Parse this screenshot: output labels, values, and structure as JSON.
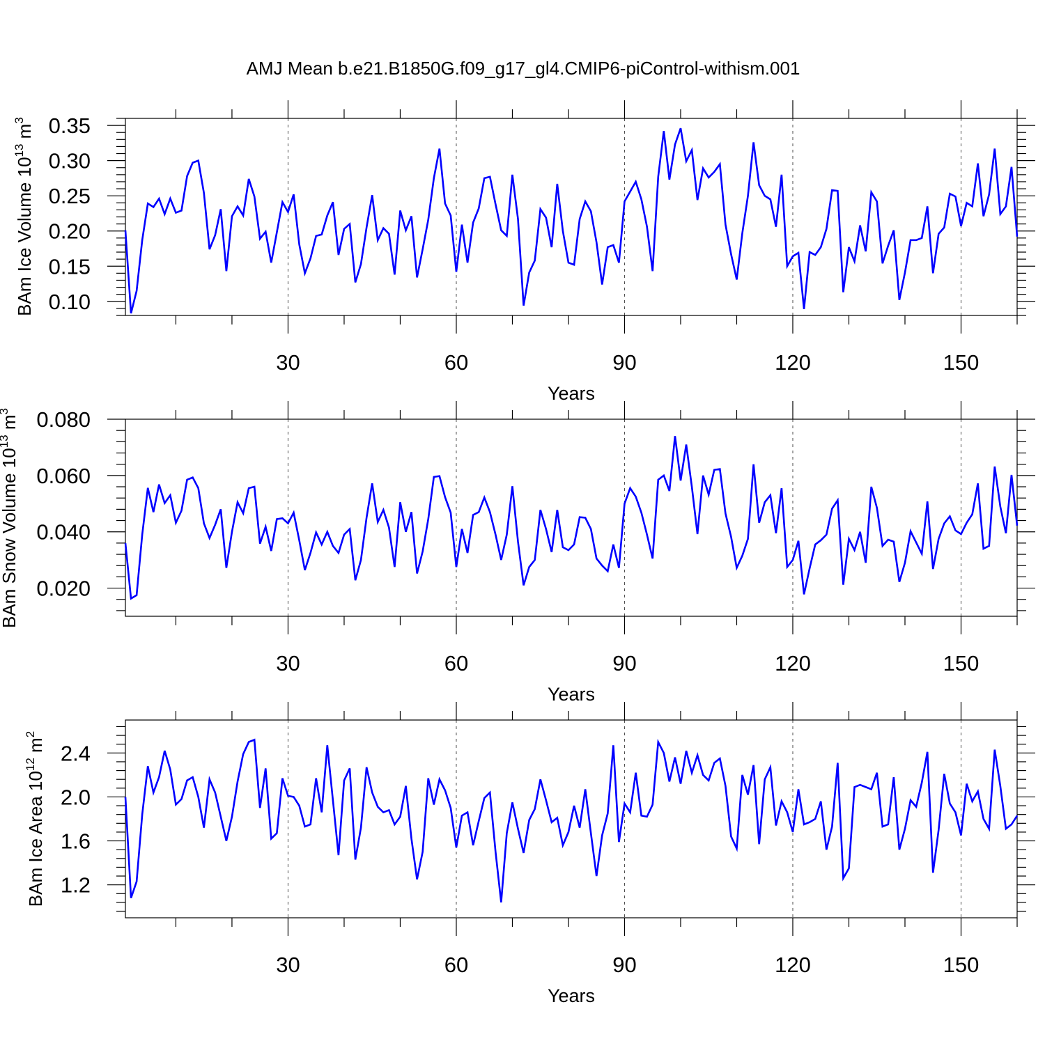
{
  "chart_data": [
    {
      "type": "line",
      "title": "AMJ Mean b.e21.B1850G.f09_g17_gl4.CMIP6-piControl-withism.001",
      "xlabel": "Years",
      "ylabel_main": "BAm Ice Volume 10",
      "ylabel_exp": "13",
      "ylabel_unit": "m",
      "ylabel_unit_exp": "3",
      "xlim": [
        1,
        160
      ],
      "ylim": [
        0.08,
        0.36
      ],
      "x_ticks": [
        30,
        60,
        90,
        120,
        150
      ],
      "x_tick_labels": [
        "30",
        "60",
        "90",
        "120",
        "150"
      ],
      "y_ticks": [
        0.1,
        0.15,
        0.2,
        0.25,
        0.3,
        0.35
      ],
      "y_tick_labels": [
        "0.10",
        "0.15",
        "0.20",
        "0.25",
        "0.30",
        "0.35"
      ],
      "series": [
        {
          "name": "BAm Ice Volume",
          "color": "#0000ff",
          "x_start": 1,
          "values": [
            0.201,
            0.083,
            0.115,
            0.187,
            0.239,
            0.234,
            0.246,
            0.224,
            0.246,
            0.226,
            0.229,
            0.278,
            0.297,
            0.3,
            0.254,
            0.174,
            0.194,
            0.231,
            0.143,
            0.221,
            0.235,
            0.222,
            0.274,
            0.249,
            0.189,
            0.199,
            0.155,
            0.198,
            0.241,
            0.227,
            0.252,
            0.181,
            0.14,
            0.161,
            0.193,
            0.195,
            0.222,
            0.241,
            0.166,
            0.203,
            0.21,
            0.127,
            0.153,
            0.205,
            0.251,
            0.187,
            0.204,
            0.196,
            0.138,
            0.229,
            0.201,
            0.221,
            0.134,
            0.174,
            0.216,
            0.275,
            0.317,
            0.239,
            0.222,
            0.142,
            0.209,
            0.155,
            0.212,
            0.232,
            0.275,
            0.277,
            0.238,
            0.201,
            0.193,
            0.28,
            0.217,
            0.094,
            0.141,
            0.158,
            0.231,
            0.219,
            0.177,
            0.267,
            0.2,
            0.155,
            0.152,
            0.217,
            0.242,
            0.228,
            0.184,
            0.124,
            0.177,
            0.18,
            0.155,
            0.242,
            0.256,
            0.27,
            0.245,
            0.206,
            0.143,
            0.277,
            0.342,
            0.273,
            0.323,
            0.346,
            0.299,
            0.315,
            0.244,
            0.289,
            0.276,
            0.284,
            0.295,
            0.209,
            0.167,
            0.131,
            0.197,
            0.25,
            0.326,
            0.265,
            0.25,
            0.245,
            0.206,
            0.28,
            0.15,
            0.164,
            0.169,
            0.089,
            0.17,
            0.166,
            0.177,
            0.203,
            0.258,
            0.257,
            0.113,
            0.177,
            0.157,
            0.208,
            0.171,
            0.255,
            0.242,
            0.154,
            0.179,
            0.201,
            0.102,
            0.141,
            0.187,
            0.187,
            0.19,
            0.235,
            0.14,
            0.196,
            0.205,
            0.253,
            0.249,
            0.207,
            0.24,
            0.235,
            0.296,
            0.221,
            0.252,
            0.317,
            0.224,
            0.235,
            0.291,
            0.192
          ]
        }
      ]
    },
    {
      "type": "line",
      "xlabel": "Years",
      "ylabel_main": "BAm Snow Volume 10",
      "ylabel_exp": "13",
      "ylabel_unit": "m",
      "ylabel_unit_exp": "3",
      "xlim": [
        1,
        160
      ],
      "ylim": [
        0.01,
        0.08
      ],
      "x_ticks": [
        30,
        60,
        90,
        120,
        150
      ],
      "x_tick_labels": [
        "30",
        "60",
        "90",
        "120",
        "150"
      ],
      "y_ticks": [
        0.02,
        0.04,
        0.06,
        0.08
      ],
      "y_tick_labels": [
        "0.020",
        "0.040",
        "0.060",
        "0.080"
      ],
      "series": [
        {
          "name": "BAm Snow Volume",
          "color": "#0000ff",
          "x_start": 1,
          "values": [
            0.036,
            0.0163,
            0.0175,
            0.039,
            0.0556,
            0.047,
            0.0568,
            0.0502,
            0.053,
            0.0432,
            0.0475,
            0.0585,
            0.0593,
            0.0555,
            0.043,
            0.0378,
            0.0425,
            0.048,
            0.0272,
            0.04,
            0.0505,
            0.0466,
            0.0555,
            0.056,
            0.0358,
            0.0418,
            0.0332,
            0.0445,
            0.0448,
            0.043,
            0.0468,
            0.037,
            0.0264,
            0.0325,
            0.0398,
            0.0355,
            0.04,
            0.035,
            0.0325,
            0.039,
            0.041,
            0.0228,
            0.03,
            0.045,
            0.0572,
            0.0435,
            0.0478,
            0.0415,
            0.0275,
            0.0505,
            0.04,
            0.047,
            0.0252,
            0.033,
            0.0445,
            0.0595,
            0.0598,
            0.0523,
            0.0468,
            0.0275,
            0.041,
            0.0325,
            0.046,
            0.047,
            0.0522,
            0.047,
            0.039,
            0.03,
            0.039,
            0.0562,
            0.0365,
            0.021,
            0.0275,
            0.03,
            0.0478,
            0.041,
            0.0328,
            0.0478,
            0.0345,
            0.0335,
            0.0355,
            0.0452,
            0.045,
            0.041,
            0.0305,
            0.028,
            0.026,
            0.0355,
            0.0272,
            0.05,
            0.0555,
            0.0525,
            0.0468,
            0.039,
            0.0305,
            0.0585,
            0.06,
            0.0545,
            0.074,
            0.0582,
            0.071,
            0.056,
            0.0392,
            0.06,
            0.0532,
            0.062,
            0.0623,
            0.0465,
            0.0382,
            0.0272,
            0.0315,
            0.0375,
            0.064,
            0.0432,
            0.0505,
            0.053,
            0.0395,
            0.0555,
            0.0275,
            0.03,
            0.0368,
            0.0178,
            0.027,
            0.0355,
            0.037,
            0.039,
            0.0482,
            0.0512,
            0.0212,
            0.0375,
            0.0335,
            0.04,
            0.029,
            0.056,
            0.0485,
            0.035,
            0.0372,
            0.0365,
            0.0222,
            0.029,
            0.0402,
            0.0362,
            0.0322,
            0.0508,
            0.0268,
            0.0375,
            0.043,
            0.0455,
            0.0405,
            0.0392,
            0.0432,
            0.0462,
            0.0572,
            0.034,
            0.035,
            0.0632,
            0.049,
            0.0395,
            0.0602,
            0.0422
          ]
        }
      ]
    },
    {
      "type": "line",
      "xlabel": "Years",
      "ylabel_main": "BAm Ice Area 10",
      "ylabel_exp": "12",
      "ylabel_unit": "m",
      "ylabel_unit_exp": "2",
      "xlim": [
        1,
        160
      ],
      "ylim": [
        0.9,
        2.7
      ],
      "x_ticks": [
        30,
        60,
        90,
        120,
        150
      ],
      "x_tick_labels": [
        "30",
        "60",
        "90",
        "120",
        "150"
      ],
      "y_ticks": [
        1.2,
        1.6,
        2.0,
        2.4
      ],
      "y_tick_labels": [
        "1.2",
        "1.6",
        "2.0",
        "2.4"
      ],
      "series": [
        {
          "name": "BAm Ice Area",
          "color": "#0000ff",
          "x_start": 1,
          "values": [
            2.0,
            1.08,
            1.23,
            1.84,
            2.28,
            2.04,
            2.18,
            2.42,
            2.25,
            1.93,
            1.98,
            2.15,
            2.18,
            2.0,
            1.72,
            2.16,
            2.04,
            1.82,
            1.6,
            1.82,
            2.14,
            2.39,
            2.5,
            2.52,
            1.9,
            2.26,
            1.62,
            1.67,
            2.17,
            2.01,
            2.0,
            1.92,
            1.73,
            1.75,
            2.17,
            1.86,
            2.47,
            1.97,
            1.47,
            2.15,
            2.26,
            1.43,
            1.72,
            2.27,
            2.04,
            1.91,
            1.86,
            1.88,
            1.75,
            1.82,
            2.1,
            1.62,
            1.25,
            1.5,
            2.17,
            1.93,
            2.16,
            2.06,
            1.9,
            1.54,
            1.83,
            1.86,
            1.56,
            1.78,
            1.99,
            2.04,
            1.5,
            1.04,
            1.67,
            1.95,
            1.71,
            1.49,
            1.79,
            1.89,
            2.16,
            1.97,
            1.77,
            1.81,
            1.56,
            1.68,
            1.92,
            1.72,
            2.07,
            1.67,
            1.28,
            1.65,
            1.85,
            2.47,
            1.59,
            1.94,
            1.86,
            2.22,
            1.83,
            1.82,
            1.93,
            2.5,
            2.4,
            2.14,
            2.36,
            2.12,
            2.42,
            2.22,
            2.38,
            2.2,
            2.15,
            2.31,
            2.35,
            2.1,
            1.64,
            1.53,
            2.2,
            2.02,
            2.29,
            1.57,
            2.16,
            2.27,
            1.74,
            1.96,
            1.86,
            1.68,
            2.07,
            1.75,
            1.77,
            1.8,
            1.96,
            1.52,
            1.73,
            2.31,
            1.26,
            1.35,
            2.09,
            2.11,
            2.09,
            2.07,
            2.22,
            1.73,
            1.75,
            2.18,
            1.52,
            1.71,
            1.97,
            1.91,
            2.13,
            2.41,
            1.31,
            1.7,
            2.21,
            1.94,
            1.86,
            1.65,
            2.12,
            1.96,
            2.05,
            1.8,
            1.71,
            2.43,
            2.1,
            1.71,
            1.75,
            1.83
          ]
        }
      ]
    }
  ]
}
